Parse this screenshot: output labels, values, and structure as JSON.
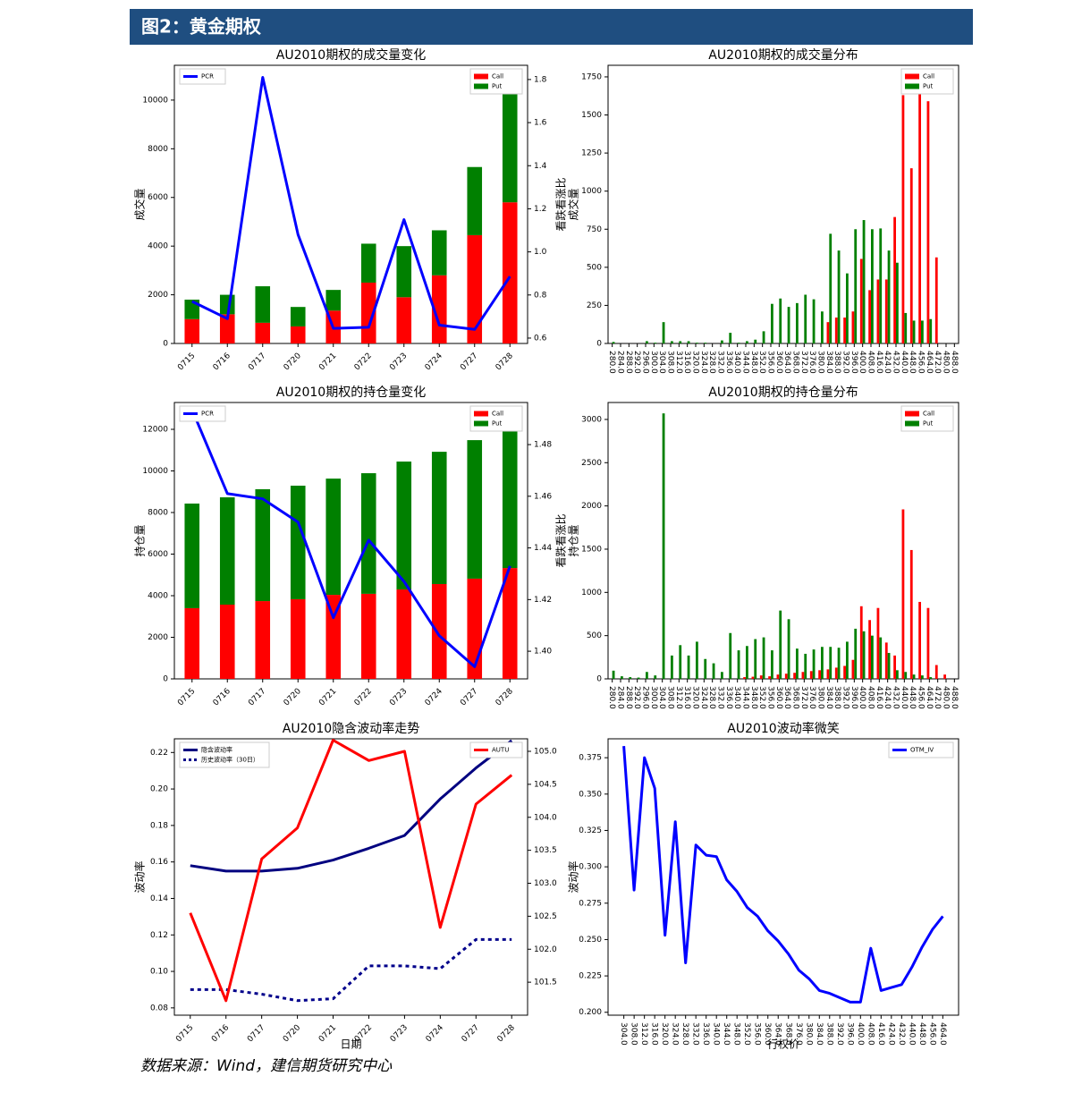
{
  "header": {
    "title": "图2：黄金期权"
  },
  "source": "数据来源：Wind，建信期货研究中心",
  "chart_data": [
    {
      "type": "bar",
      "stacked": true,
      "title": "AU2010期权的成交量变化",
      "ylabel": "成交量",
      "y2label": "看跌看涨比",
      "categories": [
        "0715",
        "0716",
        "0717",
        "0720",
        "0721",
        "0722",
        "0723",
        "0724",
        "0727",
        "0728"
      ],
      "series": [
        {
          "name": "Call",
          "color": "#ff0000",
          "values": [
            1000,
            1200,
            850,
            700,
            1350,
            2500,
            1900,
            2800,
            4450,
            5800
          ]
        },
        {
          "name": "Put",
          "color": "#008000",
          "values": [
            800,
            800,
            1500,
            800,
            850,
            1600,
            2100,
            1850,
            2800,
            4900
          ]
        },
        {
          "name": "PCR",
          "type": "line",
          "axis": "y2",
          "color": "#0000ff",
          "values": [
            0.77,
            0.69,
            1.81,
            1.08,
            0.645,
            0.65,
            1.15,
            0.66,
            0.64,
            0.886
          ]
        }
      ],
      "ylim": [
        0,
        11430
      ],
      "yticks": [
        0,
        2000,
        4000,
        6000,
        8000,
        10000
      ],
      "y2lim": [
        0.575,
        1.866
      ],
      "y2ticks": [
        0.6,
        0.8,
        {
          "value": 1,
          "label": "1.0"
        },
        1.2,
        1.4,
        1.6,
        1.8
      ],
      "legend": "upper right",
      "legend2": "upper left"
    },
    {
      "type": "bar",
      "stacked": false,
      "title": "AU2010期权的成交量分布",
      "ylabel": "成交量",
      "categories": [
        "280.0",
        "284.0",
        "288.0",
        "292.0",
        "296.0",
        "300.0",
        "304.0",
        "308.0",
        "312.0",
        "316.0",
        "320.0",
        "324.0",
        "328.0",
        "332.0",
        "336.0",
        "340.0",
        "344.0",
        "348.0",
        "352.0",
        "356.0",
        "360.0",
        "364.0",
        "368.0",
        "372.0",
        "376.0",
        "380.0",
        "384.0",
        "388.0",
        "392.0",
        "396.0",
        "400.0",
        "408.0",
        "416.0",
        "424.0",
        "432.0",
        "440.0",
        "448.0",
        "456.0",
        "464.0",
        "472.0",
        "480.0",
        "488.0"
      ],
      "series": [
        {
          "name": "Call",
          "color": "#ff0000",
          "values": [
            0,
            0,
            0,
            0,
            0,
            0,
            0,
            0,
            0,
            0,
            0,
            0,
            0,
            0,
            0,
            0,
            0,
            0,
            0,
            0,
            0,
            0,
            0,
            0,
            0,
            0,
            140,
            170,
            170,
            210,
            555,
            350,
            420,
            420,
            830,
            1630,
            1150,
            1735,
            1590,
            565,
            0,
            0
          ]
        },
        {
          "name": "Put",
          "color": "#008000",
          "values": [
            10,
            0,
            0,
            0,
            15,
            5,
            140,
            15,
            15,
            15,
            5,
            5,
            0,
            20,
            70,
            5,
            15,
            25,
            80,
            260,
            295,
            240,
            265,
            320,
            290,
            210,
            720,
            610,
            460,
            750,
            810,
            750,
            755,
            610,
            530,
            200,
            150,
            150,
            160,
            0,
            0,
            0
          ]
        }
      ],
      "ylim": [
        0,
        1826
      ],
      "yticks": [
        0,
        250,
        500,
        750,
        1000,
        1250,
        1500,
        1750
      ],
      "legend": "upper right"
    },
    {
      "type": "bar",
      "stacked": true,
      "title": "AU2010期权的持仓量变化",
      "ylabel": "持仓量",
      "y2label": "看跌看涨比",
      "categories": [
        "0715",
        "0716",
        "0717",
        "0720",
        "0721",
        "0722",
        "0723",
        "0724",
        "0727",
        "0728"
      ],
      "series": [
        {
          "name": "Call",
          "color": "#ff0000",
          "values": [
            3400,
            3570,
            3740,
            3830,
            4040,
            4090,
            4300,
            4560,
            4820,
            5330
          ]
        },
        {
          "name": "Put",
          "color": "#008000",
          "values": [
            5030,
            5160,
            5380,
            5460,
            5590,
            5800,
            6150,
            6360,
            6660,
            7440
          ]
        },
        {
          "name": "PCR",
          "type": "line",
          "axis": "y2",
          "color": "#0000ff",
          "values": [
            1.4935,
            1.461,
            1.459,
            1.45,
            1.413,
            1.443,
            1.427,
            1.406,
            1.394,
            1.433
          ]
        }
      ],
      "ylim": [
        0,
        13290
      ],
      "yticks": [
        0,
        2000,
        4000,
        6000,
        8000,
        10000,
        12000
      ],
      "y2lim": [
        1.3893,
        1.4963
      ],
      "y2ticks": [
        {
          "value": 1.4,
          "label": "1.40"
        },
        1.42,
        1.44,
        1.46,
        1.48
      ],
      "legend": "upper right",
      "legend2": "upper left"
    },
    {
      "type": "bar",
      "stacked": false,
      "title": "AU2010期权的持仓量分布",
      "ylabel": "持仓量",
      "categories": [
        "280.0",
        "284.0",
        "288.0",
        "292.0",
        "296.0",
        "300.0",
        "304.0",
        "308.0",
        "312.0",
        "316.0",
        "320.0",
        "324.0",
        "328.0",
        "332.0",
        "336.0",
        "340.0",
        "344.0",
        "348.0",
        "352.0",
        "356.0",
        "360.0",
        "364.0",
        "368.0",
        "372.0",
        "376.0",
        "380.0",
        "384.0",
        "388.0",
        "392.0",
        "396.0",
        "400.0",
        "408.0",
        "416.0",
        "424.0",
        "432.0",
        "440.0",
        "448.0",
        "456.0",
        "464.0",
        "472.0",
        "480.0",
        "488.0"
      ],
      "series": [
        {
          "name": "Call",
          "color": "#ff0000",
          "values": [
            0,
            0,
            0,
            0,
            0,
            0,
            0,
            0,
            0,
            0,
            0,
            0,
            0,
            0,
            0,
            0,
            20,
            25,
            40,
            30,
            50,
            60,
            70,
            80,
            90,
            100,
            110,
            130,
            150,
            220,
            840,
            680,
            820,
            420,
            270,
            1960,
            1490,
            890,
            820,
            160,
            50,
            0
          ]
        },
        {
          "name": "Put",
          "color": "#008000",
          "values": [
            95,
            30,
            20,
            15,
            80,
            40,
            3070,
            270,
            390,
            270,
            430,
            230,
            180,
            80,
            530,
            330,
            380,
            460,
            480,
            330,
            790,
            690,
            350,
            290,
            340,
            370,
            370,
            360,
            430,
            580,
            550,
            500,
            480,
            300,
            100,
            80,
            50,
            40,
            20,
            0,
            0,
            0
          ]
        }
      ],
      "ylim": [
        0,
        3196
      ],
      "yticks": [
        0,
        500,
        1000,
        1500,
        2000,
        2500,
        3000
      ],
      "legend": "upper right"
    },
    {
      "type": "line",
      "title": "AU2010隐含波动率走势",
      "ylabel": "波动率",
      "xlabel": "日期",
      "categories": [
        "0715",
        "0716",
        "0717",
        "0720",
        "0721",
        "0722",
        "0723",
        "0724",
        "0727",
        "0728"
      ],
      "series": [
        {
          "name": "隐含波动率",
          "color": "#000080",
          "values": [
            0.158,
            0.155,
            0.155,
            0.1565,
            0.161,
            0.1675,
            0.1745,
            0.1945,
            0.2115,
            0.2265
          ]
        },
        {
          "name": "历史波动率（30日）",
          "color": "#00008b",
          "dash": true,
          "values": [
            0.09,
            0.09,
            0.0875,
            0.084,
            0.085,
            0.103,
            0.103,
            0.1015,
            0.1175,
            0.1175
          ]
        },
        {
          "name": "AUTU",
          "axis": "y2",
          "color": "#ff0000",
          "values": [
            102.55,
            101.22,
            103.37,
            103.84,
            105.17,
            104.86,
            105.0,
            102.33,
            104.2,
            104.64
          ]
        }
      ],
      "ylim": [
        0.076,
        0.2275
      ],
      "yticks": [
        0.08,
        {
          "value": 0.1,
          "label": "0.10"
        },
        0.12,
        0.14,
        0.16,
        0.18,
        {
          "value": 0.2,
          "label": "0.20"
        },
        0.22
      ],
      "y2lim": [
        101.0,
        105.19
      ],
      "y2ticks": [
        101.5,
        {
          "value": 102,
          "label": "102.0"
        },
        102.5,
        {
          "value": 103,
          "label": "103.0"
        },
        103.5,
        {
          "value": 104,
          "label": "104.0"
        },
        104.5,
        {
          "value": 105,
          "label": "105.0"
        }
      ],
      "legend": "upper left",
      "legend2": "upper right"
    },
    {
      "type": "line",
      "title": "AU2010波动率微笑",
      "ylabel": "波动率",
      "xlabel": "行权价",
      "categories": [
        "304.0",
        "308.0",
        "312.0",
        "316.0",
        "320.0",
        "324.0",
        "328.0",
        "332.0",
        "336.0",
        "340.0",
        "344.0",
        "348.0",
        "352.0",
        "356.0",
        "360.0",
        "364.0",
        "368.0",
        "376.0",
        "380.0",
        "384.0",
        "388.0",
        "392.0",
        "396.0",
        "400.0",
        "408.0",
        "416.0",
        "424.0",
        "432.0",
        "440.0",
        "448.0",
        "456.0",
        "464.0"
      ],
      "series": [
        {
          "name": "OTM_IV",
          "color": "#0000ff",
          "values": [
            0.383,
            0.284,
            0.375,
            0.354,
            0.253,
            0.331,
            0.234,
            0.315,
            0.308,
            0.307,
            0.291,
            0.283,
            0.272,
            0.266,
            0.256,
            0.249,
            0.24,
            0.229,
            0.223,
            0.215,
            0.213,
            0.21,
            0.207,
            0.207,
            0.244,
            0.215,
            0.217,
            0.219,
            0.231,
            0.245,
            0.257,
            0.266
          ]
        }
      ],
      "ylim": [
        0.198,
        0.388
      ],
      "yticks": [
        {
          "value": 0.2,
          "label": "0.200"
        },
        0.225,
        {
          "value": 0.25,
          "label": "0.250"
        },
        0.275,
        {
          "value": 0.3,
          "label": "0.300"
        },
        0.325,
        {
          "value": 0.35,
          "label": "0.350"
        },
        0.375
      ],
      "legend": "upper right"
    }
  ]
}
